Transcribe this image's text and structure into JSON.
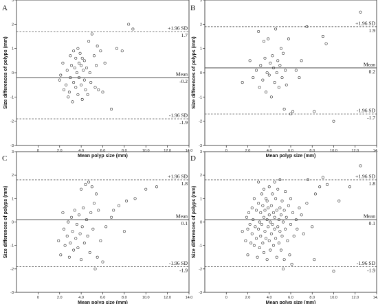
{
  "chart_data": [
    {
      "type": "scatter",
      "panel_label": "A",
      "xlabel": "Mean polyp size (mm)",
      "ylabel": "Size differences of polyps (mm)",
      "xlim": [
        -2,
        14
      ],
      "ylim": [
        -3,
        3
      ],
      "x_ticks": [
        "0",
        "2.0",
        "4.0",
        "6.0",
        "8.0",
        "10.0",
        "12.0",
        "14.0"
      ],
      "y_ticks": [
        "3",
        "2",
        "1",
        "0",
        "-1",
        "-2",
        "-3"
      ],
      "mean": {
        "value": -0.2,
        "label": "Mean",
        "value_label": "-0.2"
      },
      "upper": {
        "value": 1.7,
        "label": "+1.96 SD",
        "value_label": "1.7"
      },
      "lower": {
        "value": -1.9,
        "label": "-1.96 SD",
        "value_label": "-1.9"
      },
      "points": [
        [
          2.0,
          -0.3
        ],
        [
          2.1,
          -0.1
        ],
        [
          2.3,
          0.4
        ],
        [
          2.4,
          -0.7
        ],
        [
          2.6,
          -0.5
        ],
        [
          2.7,
          0.1
        ],
        [
          2.8,
          -1.0
        ],
        [
          2.9,
          -0.8
        ],
        [
          3.0,
          0.7
        ],
        [
          3.0,
          -0.2
        ],
        [
          3.1,
          0.3
        ],
        [
          3.2,
          -1.2
        ],
        [
          3.3,
          0.9
        ],
        [
          3.3,
          -0.4
        ],
        [
          3.4,
          0.2
        ],
        [
          3.5,
          0.6
        ],
        [
          3.5,
          -0.6
        ],
        [
          3.6,
          0.0
        ],
        [
          3.7,
          1.0
        ],
        [
          3.7,
          -0.9
        ],
        [
          3.8,
          0.4
        ],
        [
          3.8,
          -0.2
        ],
        [
          3.9,
          0.8
        ],
        [
          4.0,
          0.3
        ],
        [
          4.0,
          -0.5
        ],
        [
          4.1,
          0.6
        ],
        [
          4.1,
          -1.1
        ],
        [
          4.2,
          0.1
        ],
        [
          4.3,
          0.5
        ],
        [
          4.3,
          -0.3
        ],
        [
          4.4,
          -0.7
        ],
        [
          4.5,
          0.2
        ],
        [
          4.6,
          -0.9
        ],
        [
          4.7,
          1.3
        ],
        [
          4.8,
          0.0
        ],
        [
          4.9,
          -0.4
        ],
        [
          5.0,
          1.6
        ],
        [
          5.2,
          0.7
        ],
        [
          5.3,
          -0.6
        ],
        [
          5.4,
          0.3
        ],
        [
          5.5,
          1.1
        ],
        [
          5.6,
          -0.7
        ],
        [
          5.8,
          0.9
        ],
        [
          6.0,
          -0.8
        ],
        [
          6.2,
          0.4
        ],
        [
          6.8,
          -1.5
        ],
        [
          7.3,
          1.0
        ],
        [
          7.8,
          0.9
        ],
        [
          8.4,
          2.0
        ],
        [
          8.8,
          1.8
        ]
      ]
    },
    {
      "type": "scatter",
      "panel_label": "B",
      "xlabel": "Mean polyp size (mm)",
      "ylabel": "Size differences of polyps (mm)",
      "xlim": [
        -2,
        14
      ],
      "ylim": [
        -3,
        3
      ],
      "x_ticks": [
        "0",
        "2.0",
        "4.0",
        "6.0",
        "8.0",
        "10.0",
        "12.0",
        "14.0"
      ],
      "y_ticks": [
        "3",
        "2",
        "1",
        "0",
        "-1",
        "-2",
        "-3"
      ],
      "mean": {
        "value": 0.2,
        "label": "Mean",
        "value_label": "0.2"
      },
      "upper": {
        "value": 1.9,
        "label": "+1.96 SD",
        "value_label": "1.9"
      },
      "lower": {
        "value": -1.7,
        "label": "-1.96 SD",
        "value_label": "-1.7"
      },
      "points": [
        [
          1.5,
          -0.4
        ],
        [
          2.2,
          0.5
        ],
        [
          2.5,
          -0.2
        ],
        [
          2.8,
          0.1
        ],
        [
          3.0,
          1.7
        ],
        [
          3.1,
          -0.6
        ],
        [
          3.2,
          0.3
        ],
        [
          3.4,
          -0.3
        ],
        [
          3.5,
          1.3
        ],
        [
          3.6,
          0.6
        ],
        [
          3.7,
          -0.8
        ],
        [
          3.8,
          0.0
        ],
        [
          3.9,
          1.4
        ],
        [
          4.0,
          -0.1
        ],
        [
          4.1,
          0.4
        ],
        [
          4.2,
          -1.0
        ],
        [
          4.3,
          0.7
        ],
        [
          4.4,
          0.2
        ],
        [
          4.5,
          -0.4
        ],
        [
          4.6,
          1.8
        ],
        [
          4.7,
          0.0
        ],
        [
          4.8,
          0.5
        ],
        [
          4.9,
          -0.6
        ],
        [
          5.0,
          0.3
        ],
        [
          5.1,
          1.0
        ],
        [
          5.2,
          -0.2
        ],
        [
          5.3,
          0.8
        ],
        [
          5.4,
          -1.5
        ],
        [
          5.5,
          0.1
        ],
        [
          5.6,
          -0.5
        ],
        [
          5.8,
          1.4
        ],
        [
          6.0,
          -1.7
        ],
        [
          6.2,
          -1.6
        ],
        [
          6.5,
          0.1
        ],
        [
          6.8,
          -0.2
        ],
        [
          7.0,
          0.5
        ],
        [
          7.5,
          1.9
        ],
        [
          8.2,
          -1.6
        ],
        [
          9.0,
          1.5
        ],
        [
          9.3,
          1.2
        ],
        [
          10.0,
          -2.0
        ],
        [
          12.5,
          2.5
        ]
      ]
    },
    {
      "type": "scatter",
      "panel_label": "C",
      "xlabel": "Mean polyp size (mm)",
      "ylabel": "Size differences of polyps (mm)",
      "xlim": [
        -2,
        14
      ],
      "ylim": [
        -3,
        3
      ],
      "x_ticks": [
        "0",
        "2.0",
        "4.0",
        "6.0",
        "8.0",
        "10.0",
        "12.0",
        "14.0"
      ],
      "y_ticks": [
        "3",
        "2",
        "1",
        "0",
        "-1",
        "-2",
        "-3"
      ],
      "mean": {
        "value": 0.1,
        "label": "Mean",
        "value_label": "0.1"
      },
      "upper": {
        "value": 1.8,
        "label": "+1.96 SD",
        "value_label": "1.8"
      },
      "lower": {
        "value": -1.9,
        "label": "-1.96 SD",
        "value_label": "-1.9"
      },
      "points": [
        [
          1.9,
          -0.8
        ],
        [
          2.1,
          -1.4
        ],
        [
          2.3,
          0.4
        ],
        [
          2.4,
          -0.3
        ],
        [
          2.5,
          -1.0
        ],
        [
          2.7,
          -0.6
        ],
        [
          2.8,
          0.0
        ],
        [
          2.9,
          -1.5
        ],
        [
          3.0,
          -0.9
        ],
        [
          3.1,
          0.2
        ],
        [
          3.2,
          -0.4
        ],
        [
          3.3,
          -1.2
        ],
        [
          3.4,
          0.5
        ],
        [
          3.5,
          -0.7
        ],
        [
          3.6,
          -0.1
        ],
        [
          3.7,
          -1.1
        ],
        [
          3.8,
          0.3
        ],
        [
          3.9,
          -0.5
        ],
        [
          4.0,
          1.4
        ],
        [
          4.0,
          -1.6
        ],
        [
          4.1,
          -0.2
        ],
        [
          4.2,
          0.6
        ],
        [
          4.3,
          -0.9
        ],
        [
          4.4,
          1.6
        ],
        [
          4.5,
          0.1
        ],
        [
          4.6,
          -0.6
        ],
        [
          4.7,
          1.7
        ],
        [
          4.8,
          -1.3
        ],
        [
          4.9,
          0.4
        ],
        [
          5.0,
          1.5
        ],
        [
          5.1,
          -0.3
        ],
        [
          5.2,
          0.8
        ],
        [
          5.3,
          -2.0
        ],
        [
          5.4,
          1.2
        ],
        [
          5.5,
          -1.5
        ],
        [
          5.6,
          0.5
        ],
        [
          5.8,
          -0.8
        ],
        [
          6.0,
          -1.7
        ],
        [
          6.3,
          -0.2
        ],
        [
          6.8,
          0.2
        ],
        [
          7.0,
          0.5
        ],
        [
          7.5,
          0.7
        ],
        [
          8.0,
          -0.4
        ],
        [
          8.2,
          0.9
        ],
        [
          9.0,
          1.0
        ],
        [
          10.0,
          1.4
        ],
        [
          11.0,
          1.5
        ]
      ]
    },
    {
      "type": "scatter",
      "panel_label": "D",
      "xlabel": "Mean polyp size (mm)",
      "ylabel": "Size differences of polyps (mm)",
      "xlim": [
        -2,
        14
      ],
      "ylim": [
        -3,
        3
      ],
      "x_ticks": [
        "0",
        "2.0",
        "4.0",
        "6.0",
        "8.0",
        "10.0",
        "12.0",
        "14.0"
      ],
      "y_ticks": [
        "3",
        "2",
        "1",
        "0",
        "-1",
        "-2",
        "-3"
      ],
      "mean": {
        "value": 0.1,
        "label": "Mean",
        "value_label": "0.1"
      },
      "upper": {
        "value": 1.8,
        "label": "+1.96 SD",
        "value_label": "1.8"
      },
      "lower": {
        "value": -1.9,
        "label": "-1.96 SD",
        "value_label": "-1.9"
      },
      "points": [
        [
          1.5,
          -0.4
        ],
        [
          1.8,
          -0.8
        ],
        [
          1.9,
          0.2
        ],
        [
          2.0,
          -0.3
        ],
        [
          2.0,
          -1.4
        ],
        [
          2.1,
          0.4
        ],
        [
          2.2,
          -0.1
        ],
        [
          2.3,
          -0.9
        ],
        [
          2.4,
          0.6
        ],
        [
          2.4,
          -0.5
        ],
        [
          2.5,
          0.1
        ],
        [
          2.6,
          -1.0
        ],
        [
          2.6,
          1.0
        ],
        [
          2.7,
          -0.2
        ],
        [
          2.8,
          0.5
        ],
        [
          2.8,
          -0.7
        ],
        [
          2.9,
          -1.5
        ],
        [
          3.0,
          0.8
        ],
        [
          3.0,
          -0.3
        ],
        [
          3.0,
          1.7
        ],
        [
          3.1,
          0.0
        ],
        [
          3.1,
          -1.1
        ],
        [
          3.2,
          0.4
        ],
        [
          3.2,
          -0.6
        ],
        [
          3.3,
          1.2
        ],
        [
          3.3,
          -0.1
        ],
        [
          3.4,
          0.7
        ],
        [
          3.4,
          -0.9
        ],
        [
          3.5,
          0.2
        ],
        [
          3.5,
          -1.3
        ],
        [
          3.5,
          1.4
        ],
        [
          3.6,
          -0.4
        ],
        [
          3.6,
          0.5
        ],
        [
          3.7,
          -0.7
        ],
        [
          3.7,
          1.0
        ],
        [
          3.8,
          0.1
        ],
        [
          3.8,
          -1.6
        ],
        [
          3.8,
          0.9
        ],
        [
          3.9,
          -0.2
        ],
        [
          3.9,
          0.6
        ],
        [
          4.0,
          -0.8
        ],
        [
          4.0,
          1.5
        ],
        [
          4.0,
          0.3
        ],
        [
          4.1,
          -1.2
        ],
        [
          4.1,
          0.0
        ],
        [
          4.2,
          0.7
        ],
        [
          4.2,
          -0.5
        ],
        [
          4.3,
          1.2
        ],
        [
          4.3,
          -0.1
        ],
        [
          4.4,
          0.4
        ],
        [
          4.4,
          -1.0
        ],
        [
          4.5,
          1.7
        ],
        [
          4.5,
          -0.3
        ],
        [
          4.5,
          0.2
        ],
        [
          4.6,
          -0.7
        ],
        [
          4.6,
          1.0
        ],
        [
          4.7,
          -1.5
        ],
        [
          4.7,
          0.5
        ],
        [
          4.8,
          -0.2
        ],
        [
          4.8,
          1.4
        ],
        [
          4.9,
          0.1
        ],
        [
          4.9,
          -0.9
        ],
        [
          5.0,
          0.6
        ],
        [
          5.0,
          -0.4
        ],
        [
          5.0,
          1.8
        ],
        [
          5.1,
          -1.2
        ],
        [
          5.1,
          0.3
        ],
        [
          5.2,
          -0.6
        ],
        [
          5.2,
          0.9
        ],
        [
          5.3,
          -2.0
        ],
        [
          5.3,
          0.0
        ],
        [
          5.4,
          0.5
        ],
        [
          5.4,
          -1.6
        ],
        [
          5.5,
          1.3
        ],
        [
          5.5,
          -0.3
        ],
        [
          5.6,
          0.2
        ],
        [
          5.7,
          -0.8
        ],
        [
          5.8,
          0.7
        ],
        [
          5.9,
          -1.4
        ],
        [
          6.0,
          -0.1
        ],
        [
          6.0,
          1.0
        ],
        [
          6.1,
          -1.8
        ],
        [
          6.2,
          0.4
        ],
        [
          6.3,
          -0.6
        ],
        [
          6.5,
          0.1
        ],
        [
          6.6,
          -0.3
        ],
        [
          6.8,
          0.6
        ],
        [
          7.0,
          0.3
        ],
        [
          7.2,
          -0.5
        ],
        [
          7.5,
          0.8
        ],
        [
          7.6,
          1.8
        ],
        [
          8.0,
          -0.2
        ],
        [
          8.2,
          -1.6
        ],
        [
          8.3,
          1.2
        ],
        [
          8.7,
          1.5
        ],
        [
          9.0,
          1.9
        ],
        [
          9.4,
          1.6
        ],
        [
          10.0,
          -2.1
        ],
        [
          10.5,
          0.9
        ],
        [
          11.5,
          1.5
        ],
        [
          12.5,
          2.4
        ]
      ]
    }
  ]
}
